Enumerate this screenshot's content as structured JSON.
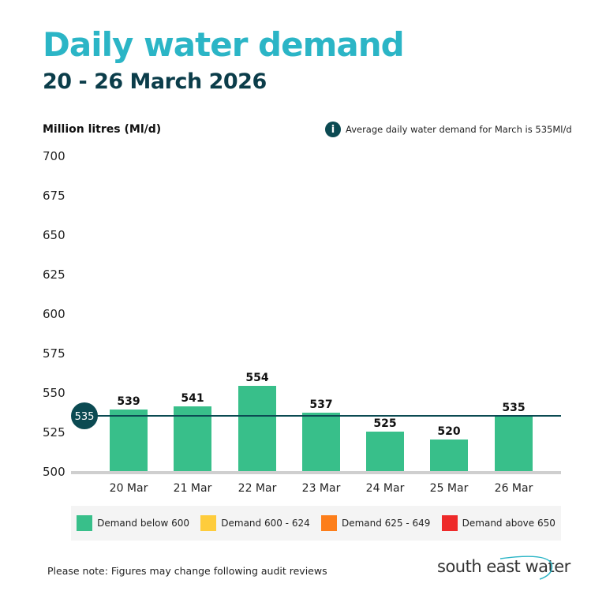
{
  "header": {
    "title": "Daily water demand",
    "subtitle": "20 - 26 March 2026"
  },
  "note": {
    "icon": "info-icon",
    "text": "Average daily water demand for March is 535Ml/d"
  },
  "chart_data": {
    "type": "bar",
    "ylabel": "Million litres (Ml/d)",
    "ylim": [
      500,
      700
    ],
    "yticks": [
      700,
      675,
      650,
      625,
      600,
      575,
      550,
      525,
      500
    ],
    "categories": [
      "20 Mar",
      "21 Mar",
      "22 Mar",
      "23 Mar",
      "24 Mar",
      "25 Mar",
      "26 Mar"
    ],
    "values": [
      539,
      541,
      554,
      537,
      525,
      520,
      535
    ],
    "average": {
      "value": 535,
      "label": "535",
      "color": "#0b4a52"
    },
    "bar_color": "#38bf8a",
    "grid": false,
    "legend_position": "bottom",
    "legend": [
      {
        "label": "Demand below 600",
        "color": "#38bf8a"
      },
      {
        "label": "Demand 600 - 624",
        "color": "#fecc3c"
      },
      {
        "label": "Demand 625 - 649",
        "color": "#fd7e1a"
      },
      {
        "label": "Demand above 650",
        "color": "#ee2a2a"
      }
    ]
  },
  "footer": {
    "note": "Please note: Figures may change following audit reviews",
    "logo": "south east water"
  }
}
